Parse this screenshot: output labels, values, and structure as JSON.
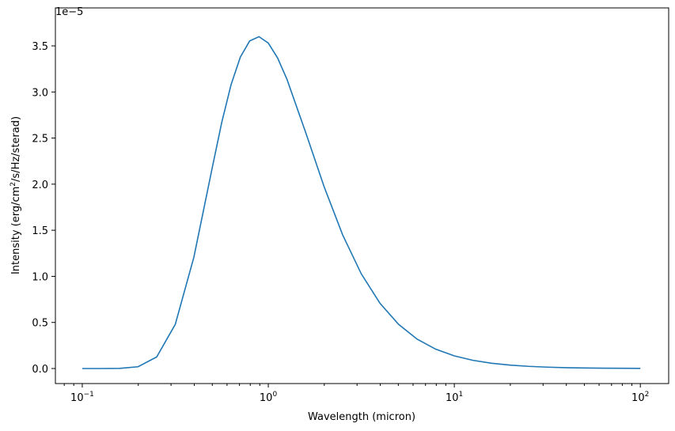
{
  "chart_data": {
    "type": "line",
    "x_label": "Wavelength (micron)",
    "y_label": {
      "text": "Intensity (erg/cm",
      "superscript": "2",
      "rest": "/s/Hz/sterad)"
    },
    "y_offset_label": "1e−5",
    "x_scale": "log",
    "x": [
      0.1,
      0.1259,
      0.1585,
      0.1995,
      0.2512,
      0.3162,
      0.3981,
      0.5012,
      0.5623,
      0.631,
      0.7079,
      0.7943,
      0.8913,
      1.0,
      1.122,
      1.259,
      1.585,
      1.995,
      2.512,
      3.162,
      3.981,
      5.012,
      6.31,
      7.943,
      10,
      12.59,
      15.85,
      19.95,
      25.12,
      31.62,
      39.81,
      50.12,
      63.1,
      79.43,
      100
    ],
    "series": [
      {
        "name": "intensity",
        "color": "#1f77b4",
        "values": [
          0,
          0.0001,
          0.0016,
          0.0194,
          0.1254,
          0.479,
          1.208,
          2.191,
          2.672,
          3.08,
          3.379,
          3.554,
          3.6,
          3.531,
          3.369,
          3.139,
          2.566,
          1.973,
          1.448,
          1.027,
          0.709,
          0.48,
          0.319,
          0.21,
          0.137,
          0.089,
          0.0573,
          0.0368,
          0.0235,
          0.015,
          0.0095,
          0.0061,
          0.0038,
          0.0024,
          0.0015
        ]
      }
    ],
    "xlim": [
      0.0717,
      142
    ],
    "ylim": [
      -0.163,
      3.912
    ],
    "xticks": [
      {
        "value": 0.1,
        "label": "10",
        "exponent": "−1"
      },
      {
        "value": 1,
        "label": "10",
        "exponent": "0"
      },
      {
        "value": 10,
        "label": "10",
        "exponent": "1"
      },
      {
        "value": 100,
        "label": "10",
        "exponent": "2"
      }
    ],
    "yticks": [
      {
        "value": 0,
        "label": "0.0"
      },
      0.5,
      {
        "value": 1,
        "label": "1.0"
      },
      1.5,
      {
        "value": 2,
        "label": "2.0"
      },
      2.5,
      {
        "value": 3,
        "label": "3.0"
      },
      3.5
    ]
  }
}
